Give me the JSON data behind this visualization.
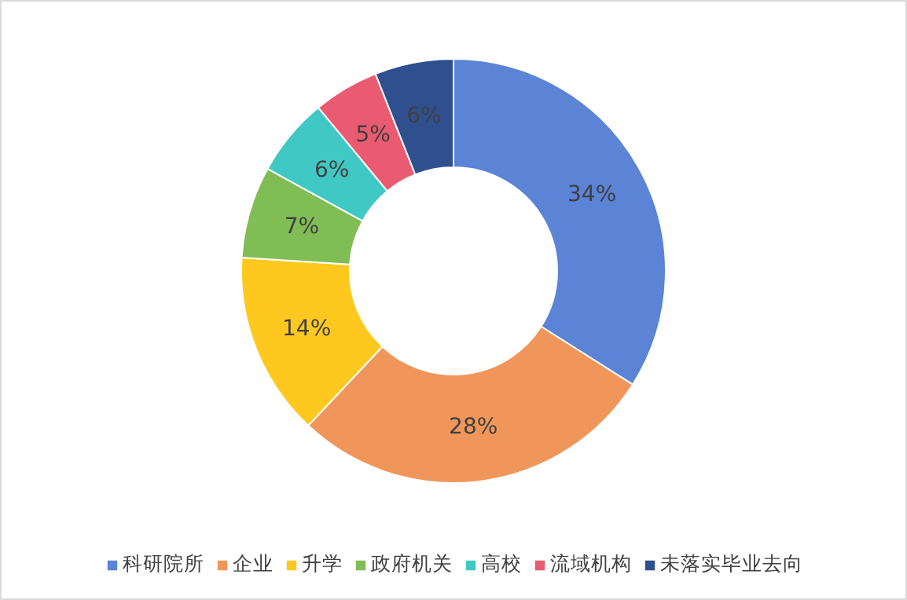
{
  "chart_data": {
    "type": "donut",
    "categories": [
      "科研院所",
      "企业",
      "升学",
      "政府机关",
      "高校",
      "流域机构",
      "未落实毕业去向"
    ],
    "values": [
      34,
      28,
      14,
      7,
      6,
      5,
      6
    ],
    "value_labels": [
      "34%",
      "28%",
      "14%",
      "7%",
      "6%",
      "5%",
      "6%"
    ],
    "colors": [
      "#5b83d6",
      "#f0965a",
      "#ffc81e",
      "#80bd55",
      "#3fc8c4",
      "#ea5a70",
      "#2f4f8f"
    ],
    "legend": "bottom"
  }
}
